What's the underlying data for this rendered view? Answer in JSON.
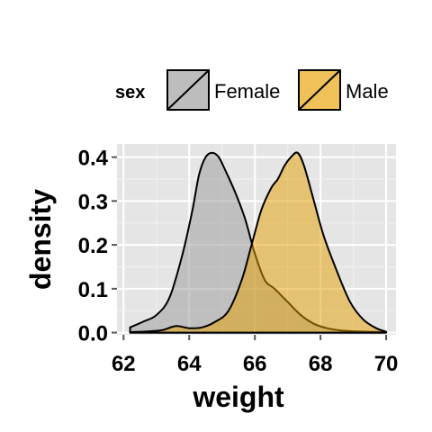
{
  "chart_data": {
    "type": "area",
    "title": "",
    "xlabel": "weight",
    "ylabel": "density",
    "xlim": [
      61.8,
      70.3
    ],
    "ylim": [
      -0.005,
      0.43
    ],
    "xticks": [
      62,
      64,
      66,
      68,
      70
    ],
    "xtick_labels": [
      "62",
      "64",
      "66",
      "68",
      "70"
    ],
    "yticks": [
      0.0,
      0.1,
      0.2,
      0.3,
      0.4
    ],
    "ytick_labels": [
      "0.0",
      "0.1",
      "0.2",
      "0.3",
      "0.4"
    ],
    "grid": true,
    "legend": {
      "title": "sex",
      "position": "top"
    },
    "series": [
      {
        "name": "Female",
        "color": "#999999",
        "x": [
          62.2,
          62.6,
          63.0,
          63.4,
          63.8,
          64.1,
          64.3,
          64.5,
          64.7,
          64.9,
          65.1,
          65.4,
          65.7,
          66.0,
          66.3,
          66.6,
          67.0,
          67.4,
          67.8,
          68.2,
          68.6,
          69.0,
          69.5,
          70.0
        ],
        "y": [
          0.012,
          0.025,
          0.04,
          0.08,
          0.18,
          0.28,
          0.36,
          0.4,
          0.41,
          0.4,
          0.37,
          0.32,
          0.26,
          0.18,
          0.12,
          0.1,
          0.07,
          0.04,
          0.02,
          0.01,
          0.005,
          0.003,
          0.002,
          0.001
        ]
      },
      {
        "name": "Male",
        "color": "#E69F00",
        "x": [
          62.2,
          62.8,
          63.2,
          63.6,
          64.0,
          64.4,
          64.8,
          65.2,
          65.6,
          65.9,
          66.2,
          66.5,
          66.7,
          66.9,
          67.1,
          67.3,
          67.5,
          67.8,
          68.1,
          68.5,
          68.9,
          69.3,
          69.7,
          70.0
        ],
        "y": [
          0.001,
          0.003,
          0.006,
          0.015,
          0.01,
          0.012,
          0.025,
          0.05,
          0.12,
          0.2,
          0.28,
          0.33,
          0.35,
          0.38,
          0.4,
          0.41,
          0.38,
          0.3,
          0.22,
          0.14,
          0.07,
          0.03,
          0.01,
          0.002
        ]
      }
    ]
  }
}
